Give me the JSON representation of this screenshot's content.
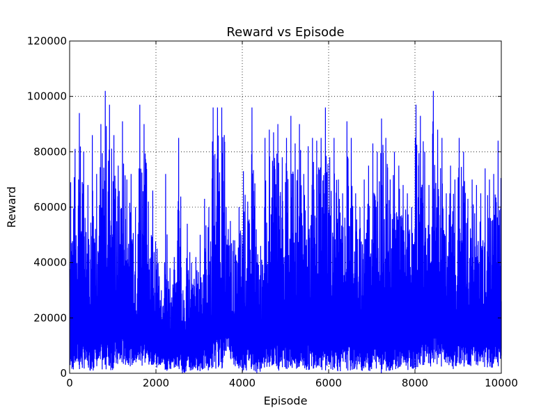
{
  "chart_data": {
    "type": "line",
    "title": "Reward vs Episode",
    "xlabel": "Episode",
    "ylabel": "Reward",
    "xlim": [
      0,
      10000
    ],
    "ylim": [
      0,
      120000
    ],
    "xticks": [
      0,
      2000,
      4000,
      6000,
      8000,
      10000
    ],
    "yticks": [
      0,
      20000,
      40000,
      60000,
      80000,
      100000,
      120000
    ],
    "grid": true,
    "series": [
      {
        "color": "#0000ff",
        "x": [
          0,
          100,
          200,
          300,
          400,
          500,
          600,
          700,
          800,
          900,
          1000,
          1100,
          1200,
          1300,
          1400,
          1500,
          1600,
          1700,
          1800,
          1900,
          2000,
          2100,
          2200,
          2300,
          2400,
          2500,
          2600,
          2700,
          2800,
          2900,
          3000,
          3100,
          3200,
          3300,
          3400,
          3500,
          3600,
          3700,
          3800,
          3900,
          4000,
          4100,
          4200,
          4300,
          4400,
          4500,
          4600,
          4700,
          4800,
          4900,
          5000,
          5100,
          5200,
          5300,
          5400,
          5500,
          5600,
          5700,
          5800,
          5900,
          6000,
          6100,
          6200,
          6300,
          6400,
          6500,
          6600,
          6700,
          6800,
          6900,
          7000,
          7100,
          7200,
          7300,
          7400,
          7500,
          7600,
          7700,
          7800,
          7900,
          8000,
          8100,
          8200,
          8300,
          8400,
          8500,
          8600,
          8700,
          8800,
          8900,
          9000,
          9100,
          9200,
          9300,
          9400,
          9500,
          9600,
          9700,
          9800,
          9900,
          10000
        ],
        "y_max": [
          69000,
          81000,
          94000,
          80000,
          68000,
          86000,
          72000,
          90000,
          102000,
          97000,
          86000,
          75000,
          91000,
          70000,
          72000,
          60000,
          97000,
          90000,
          62000,
          66000,
          45000,
          30000,
          72000,
          38000,
          42000,
          85000,
          30000,
          54000,
          40000,
          42000,
          50000,
          63000,
          60000,
          96000,
          96000,
          96000,
          60000,
          55000,
          48000,
          60000,
          73000,
          62000,
          96000,
          52000,
          46000,
          85000,
          88000,
          87000,
          90000,
          78000,
          85000,
          93000,
          83000,
          90000,
          72000,
          82000,
          85000,
          84000,
          85000,
          96000,
          78000,
          85000,
          70000,
          65000,
          91000,
          85000,
          65000,
          60000,
          70000,
          75000,
          83000,
          80000,
          92000,
          85000,
          70000,
          80000,
          75000,
          68000,
          65000,
          60000,
          97000,
          93000,
          80000,
          68000,
          102000,
          88000,
          85000,
          65000,
          75000,
          70000,
          85000,
          80000,
          63000,
          70000,
          68000,
          65000,
          74000,
          70000,
          72000,
          84000,
          66000
        ],
        "y_min": [
          1000,
          2000,
          500,
          1500,
          800,
          1000,
          2000,
          600,
          1200,
          800,
          1500,
          2000,
          2500,
          3000,
          2500,
          3000,
          2000,
          3000,
          2500,
          3000,
          2000,
          3000,
          0,
          1000,
          2000,
          1500,
          0,
          0,
          500,
          1000,
          500,
          1000,
          1000,
          1500,
          2000,
          1500,
          8000,
          5000,
          2000,
          1000,
          500,
          3000,
          1000,
          0,
          500,
          1000,
          2000,
          1500,
          1000,
          2000,
          1500,
          500,
          0,
          1000,
          500,
          1000,
          1500,
          2000,
          500,
          1000,
          800,
          1500,
          500,
          2000,
          1000,
          500,
          1000,
          800,
          1500,
          500,
          1000,
          1500,
          0,
          500,
          800,
          1500,
          500,
          2000,
          1000,
          1500,
          1000,
          2500,
          3000,
          2000,
          1500,
          3000,
          2000,
          2500,
          1500,
          2000,
          2500,
          2000,
          2000,
          3000,
          2500,
          2000,
          1500,
          2000,
          3000,
          2500,
          2000
        ]
      }
    ]
  }
}
